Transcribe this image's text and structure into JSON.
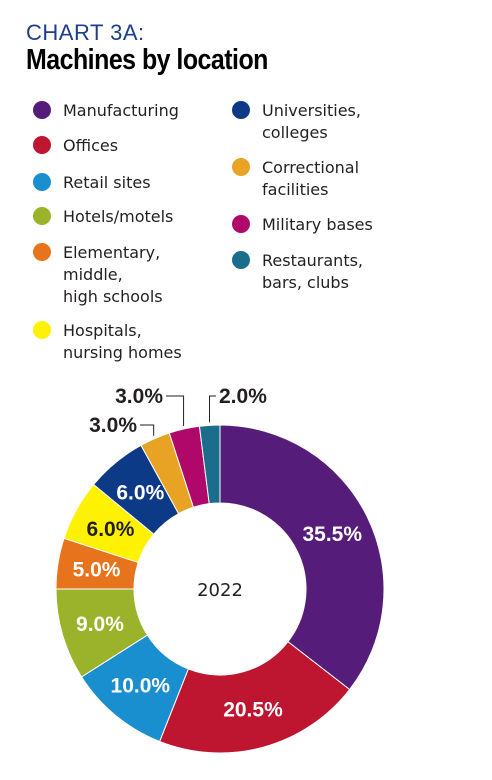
{
  "header": {
    "kicker": "CHART 3A:",
    "title": "Machines by location"
  },
  "chart_data": {
    "type": "pie",
    "center_label": "2022",
    "unit": "%",
    "categories": [
      "Manufacturing",
      "Offices",
      "Retail sites",
      "Hotels/motels",
      "Elementary, middle, high schools",
      "Hospitals, nursing homes",
      "Universities, colleges",
      "Correctional facilities",
      "Military bases",
      "Restaurants, bars, clubs"
    ],
    "legend_labels": [
      "Manufacturing",
      "Offices",
      "Retail sites",
      "Hotels/motels",
      "Elementary,\nmiddle,\nhigh schools",
      "Hospitals,\nnursing homes",
      "Universities,\ncolleges",
      "Correctional\nfacilities",
      "Military bases",
      "Restaurants,\nbars, clubs"
    ],
    "values": [
      35.5,
      20.5,
      10.0,
      9.0,
      5.0,
      6.0,
      6.0,
      3.0,
      3.0,
      2.0
    ],
    "data_labels": [
      "35.5%",
      "20.5%",
      "10.0%",
      "9.0%",
      "5.0%",
      "6.0%",
      "6.0%",
      "3.0%",
      "3.0%",
      "2.0%"
    ],
    "colors": [
      "#561c7a",
      "#be1630",
      "#1a8fd0",
      "#9ab32a",
      "#e8731d",
      "#fff200",
      "#0d3a86",
      "#e9a324",
      "#b0086a",
      "#1a6e8c"
    ],
    "label_colors": [
      "#ffffff",
      "#ffffff",
      "#ffffff",
      "#ffffff",
      "#ffffff",
      "#231f20",
      "#ffffff",
      "#231f20",
      "#231f20",
      "#231f20"
    ]
  }
}
